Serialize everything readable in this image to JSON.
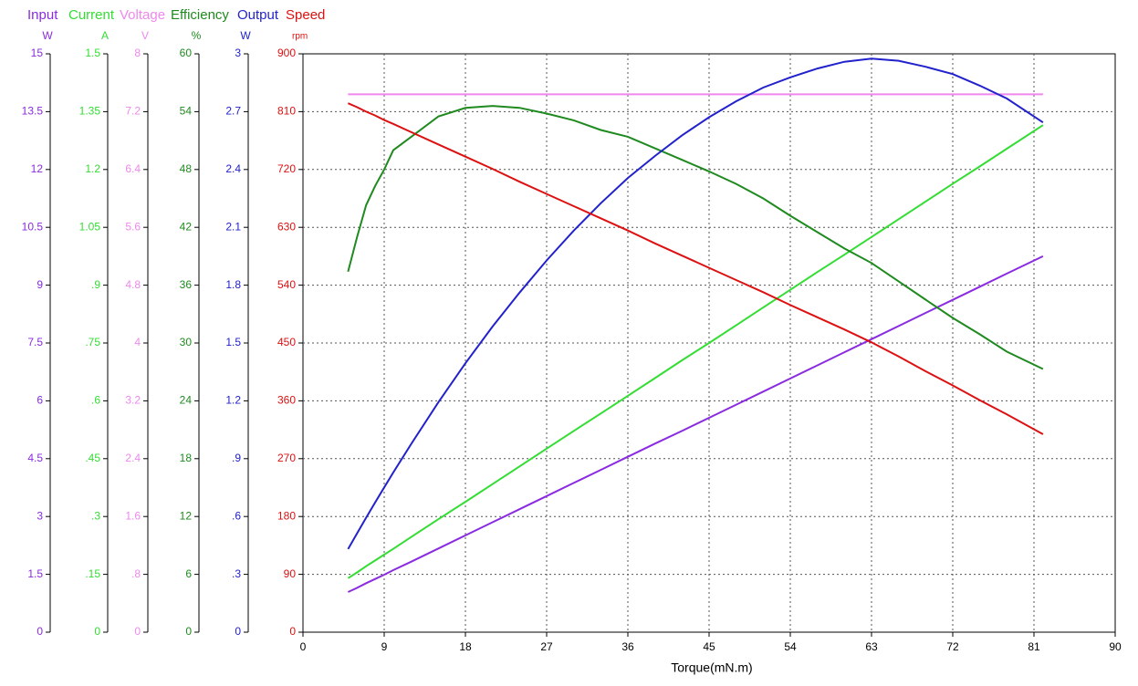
{
  "chart_data": {
    "type": "line",
    "xlabel": "Torque(mN.m)",
    "xlim": [
      0,
      90
    ],
    "xticks": [
      0,
      9,
      18,
      27,
      36,
      45,
      54,
      63,
      72,
      81,
      90
    ],
    "grid": true,
    "x": [
      5,
      6,
      7,
      8,
      9,
      10,
      12,
      15,
      18,
      21,
      24,
      27,
      30,
      33,
      36,
      39,
      42,
      45,
      48,
      51,
      54,
      57,
      60,
      63,
      66,
      69,
      72,
      75,
      78,
      82
    ],
    "axes": [
      {
        "title": "Input",
        "unit": "W",
        "color": "#8a2be2",
        "ylim": [
          0,
          15
        ],
        "yticks": [
          0,
          1.5,
          3,
          4.5,
          6,
          7.5,
          9,
          10.5,
          12,
          13.5,
          15
        ],
        "values": [
          1.04,
          1.15,
          1.27,
          1.38,
          1.49,
          1.61,
          1.83,
          2.17,
          2.51,
          2.85,
          3.19,
          3.53,
          3.87,
          4.21,
          4.55,
          4.89,
          5.22,
          5.56,
          5.9,
          6.24,
          6.58,
          6.92,
          7.26,
          7.6,
          7.94,
          8.28,
          8.62,
          8.96,
          9.3,
          9.75
        ]
      },
      {
        "title": "Current",
        "unit": "A",
        "color": "#33dd33",
        "ylim": [
          0,
          1.5
        ],
        "yticks": [
          0,
          {
            "value": 0.15,
            "label": ".15"
          },
          {
            "value": 0.3,
            "label": ".3"
          },
          {
            "value": 0.45,
            "label": ".45"
          },
          {
            "value": 0.6,
            "label": ".6"
          },
          {
            "value": 0.75,
            "label": ".75"
          },
          {
            "value": 0.9,
            "label": ".9"
          },
          1.05,
          1.2,
          1.35,
          1.5
        ],
        "values": [
          0.14,
          0.155,
          0.171,
          0.186,
          0.201,
          0.216,
          0.247,
          0.293,
          0.338,
          0.384,
          0.43,
          0.476,
          0.522,
          0.567,
          0.613,
          0.659,
          0.705,
          0.75,
          0.796,
          0.842,
          0.888,
          0.934,
          0.979,
          1.025,
          1.071,
          1.117,
          1.163,
          1.208,
          1.254,
          1.315
        ]
      },
      {
        "title": "Voltage",
        "unit": "V",
        "color": "#ee88ee",
        "ylim": [
          0,
          8
        ],
        "yticks": [
          0,
          {
            "value": 0.8,
            "label": ".8"
          },
          1.6,
          2.4,
          3.2,
          4,
          4.8,
          5.6,
          6.4,
          7.2,
          8
        ],
        "values": [
          7.44,
          7.44,
          7.44,
          7.44,
          7.44,
          7.44,
          7.44,
          7.44,
          7.44,
          7.44,
          7.44,
          7.44,
          7.44,
          7.44,
          7.44,
          7.44,
          7.44,
          7.44,
          7.44,
          7.44,
          7.44,
          7.44,
          7.44,
          7.44,
          7.44,
          7.44,
          7.44,
          7.44,
          7.44,
          7.44
        ]
      },
      {
        "title": "Efficiency",
        "unit": "%",
        "color": "#1f8a1f",
        "ylim": [
          0,
          60
        ],
        "yticks": [
          0,
          6,
          12,
          18,
          24,
          30,
          36,
          42,
          48,
          54,
          60
        ],
        "values": [
          37.4,
          41,
          44.3,
          46.3,
          48,
          50,
          51.4,
          53.5,
          54.4,
          54.6,
          54.4,
          53.8,
          53.1,
          52.1,
          51.4,
          50.2,
          49,
          47.8,
          46.5,
          45,
          43.2,
          41.5,
          39.8,
          38.3,
          36.4,
          34.5,
          32.6,
          30.9,
          29.1,
          27.3
        ]
      },
      {
        "title": "Output",
        "unit": "W",
        "color": "#2222cc",
        "ylim": [
          0,
          3
        ],
        "yticks": [
          0,
          {
            "value": 0.3,
            "label": ".3"
          },
          {
            "value": 0.6,
            "label": ".6"
          },
          {
            "value": 0.9,
            "label": ".9"
          },
          1.2,
          1.5,
          1.8,
          2.1,
          2.4,
          2.7,
          3
        ],
        "values": [
          0.431,
          0.513,
          0.594,
          0.673,
          0.751,
          0.828,
          0.977,
          1.192,
          1.395,
          1.585,
          1.761,
          1.928,
          2.083,
          2.225,
          2.356,
          2.47,
          2.577,
          2.671,
          2.754,
          2.825,
          2.878,
          2.924,
          2.959,
          2.975,
          2.964,
          2.933,
          2.895,
          2.835,
          2.768,
          2.644
        ]
      },
      {
        "title": "Speed",
        "unit": "rpm",
        "color": "#dd1111",
        "ylim": [
          0,
          900
        ],
        "yticks": [
          0,
          90,
          180,
          270,
          360,
          450,
          540,
          630,
          720,
          810,
          900
        ],
        "values": [
          823,
          817,
          810,
          804,
          797,
          791,
          778,
          759,
          740,
          721,
          701,
          682,
          663,
          644,
          625,
          605,
          586,
          567,
          548,
          529,
          509,
          490,
          471,
          451,
          429,
          406,
          384,
          361,
          339,
          308
        ]
      }
    ]
  }
}
